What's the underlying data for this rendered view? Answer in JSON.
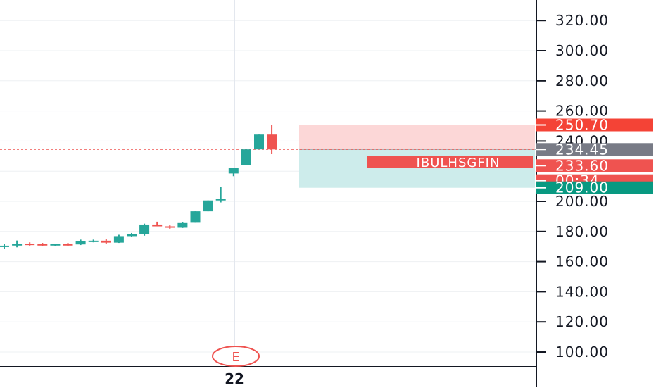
{
  "chart_data": {
    "type": "candlestick",
    "symbol": "IBULHSGFIN",
    "y_axis": {
      "ticks": [
        100,
        120,
        140,
        160,
        180,
        200,
        220,
        240,
        260,
        280,
        300,
        320
      ],
      "tick_labels": [
        "100.00",
        "120.00",
        "140.00",
        "160.00",
        "180.00",
        "200.00",
        "",
        "240.00",
        "260.00",
        "280.00",
        "300.00",
        "320.00"
      ],
      "ylim": [
        88,
        330
      ]
    },
    "x_axis": {
      "label": "22"
    },
    "candles": [
      {
        "o": 169.8,
        "h": 171.5,
        "l": 168.3,
        "c": 170.6
      },
      {
        "o": 170.8,
        "h": 174.0,
        "l": 169.5,
        "c": 171.6
      },
      {
        "o": 171.9,
        "h": 172.8,
        "l": 170.6,
        "c": 171.2
      },
      {
        "o": 171.6,
        "h": 172.4,
        "l": 170.4,
        "c": 171.2
      },
      {
        "o": 171.0,
        "h": 171.9,
        "l": 170.2,
        "c": 171.6
      },
      {
        "o": 171.6,
        "h": 172.4,
        "l": 170.6,
        "c": 171.4
      },
      {
        "o": 171.4,
        "h": 174.6,
        "l": 171.0,
        "c": 173.5
      },
      {
        "o": 173.3,
        "h": 174.6,
        "l": 172.8,
        "c": 173.9
      },
      {
        "o": 173.9,
        "h": 174.8,
        "l": 171.6,
        "c": 172.6
      },
      {
        "o": 172.6,
        "h": 177.8,
        "l": 172.4,
        "c": 176.9
      },
      {
        "o": 176.9,
        "h": 179.0,
        "l": 176.5,
        "c": 178.2
      },
      {
        "o": 178.2,
        "h": 185.2,
        "l": 177.2,
        "c": 184.6
      },
      {
        "o": 184.6,
        "h": 186.5,
        "l": 183.4,
        "c": 183.4
      },
      {
        "o": 183.4,
        "h": 184.1,
        "l": 181.8,
        "c": 182.5
      },
      {
        "o": 182.5,
        "h": 186.1,
        "l": 182.3,
        "c": 185.6
      },
      {
        "o": 185.8,
        "h": 193.4,
        "l": 185.8,
        "c": 193.4
      },
      {
        "o": 193.4,
        "h": 200.6,
        "l": 193.4,
        "c": 200.6
      },
      {
        "o": 200.6,
        "h": 209.8,
        "l": 199.3,
        "c": 201.8
      },
      {
        "o": 218.5,
        "h": 222.3,
        "l": 216.7,
        "c": 222.3
      },
      {
        "o": 224.2,
        "h": 234.5,
        "l": 224.2,
        "c": 234.5
      },
      {
        "o": 234.5,
        "h": 244.3,
        "l": 234.5,
        "c": 244.3
      },
      {
        "o": 244.3,
        "h": 250.7,
        "l": 231.3,
        "c": 234.45
      }
    ],
    "up_color": "#26a69a",
    "down_color": "#ef5350",
    "last_price": 234.45,
    "position": {
      "entry": 234.45,
      "stop": 250.7,
      "target": 209.0,
      "stop_fill": "#fcd7d7",
      "target_fill": "#cdeceb"
    },
    "price_labels": [
      {
        "price": 250.7,
        "text": "250.70",
        "bg": "#f44336",
        "fg": "#ffffff"
      },
      {
        "price": 234.45,
        "text": "234.45",
        "bg": "#787b86",
        "fg": "#ffffff"
      },
      {
        "price": 223.7,
        "text": "233.60",
        "bg": "#ef5350",
        "fg": "#ffffff"
      },
      {
        "price": 213.7,
        "text": "00:34",
        "bg": "#ef5350",
        "fg": "#ffffff"
      },
      {
        "price": 209.0,
        "text": "209.00",
        "bg": "#089981",
        "fg": "#ffffff"
      }
    ],
    "earnings_marker": "E"
  }
}
